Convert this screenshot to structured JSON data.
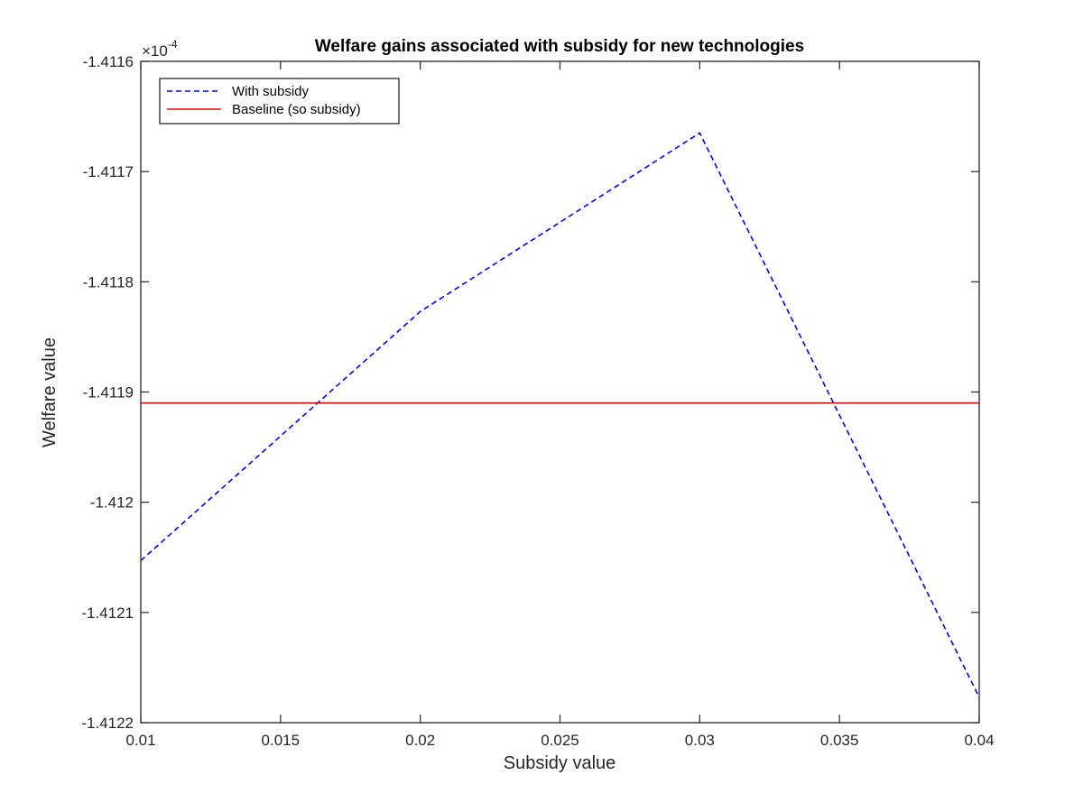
{
  "chart_data": {
    "type": "line",
    "title": "Welfare gains associated with subsidy for new technologies",
    "xlabel": "Subsidy value",
    "ylabel": "Welfare value",
    "xlim": [
      0.01,
      0.04
    ],
    "ylim": [
      -1.4122,
      -1.4116
    ],
    "y_multiplier_base": "×10",
    "y_multiplier_exp": "-4",
    "x_ticks": [
      0.01,
      0.015,
      0.02,
      0.025,
      0.03,
      0.035,
      0.04
    ],
    "x_tick_labels": [
      "0.01",
      "0.015",
      "0.02",
      "0.025",
      "0.03",
      "0.035",
      "0.04"
    ],
    "y_ticks": [
      -1.4116,
      -1.4117,
      -1.4118,
      -1.4119,
      -1.412,
      -1.4121,
      -1.4122
    ],
    "y_tick_labels": [
      "-1.4116",
      "-1.4117",
      "-1.4118",
      "-1.4119",
      "-1.412",
      "-1.4121",
      "-1.4122"
    ],
    "grid": false,
    "legend_position": "top-left",
    "series": [
      {
        "name": "With subsidy",
        "color": "#0000ff",
        "style": "dashed",
        "x": [
          0.01,
          0.02,
          0.03,
          0.04
        ],
        "y": [
          -1.412053,
          -1.411827,
          -1.411665,
          -1.412177
        ]
      },
      {
        "name": "Baseline (so subsidy)",
        "color": "#ff0000",
        "style": "solid",
        "x": [
          0.01,
          0.04
        ],
        "y": [
          -1.41191,
          -1.41191
        ]
      }
    ]
  }
}
